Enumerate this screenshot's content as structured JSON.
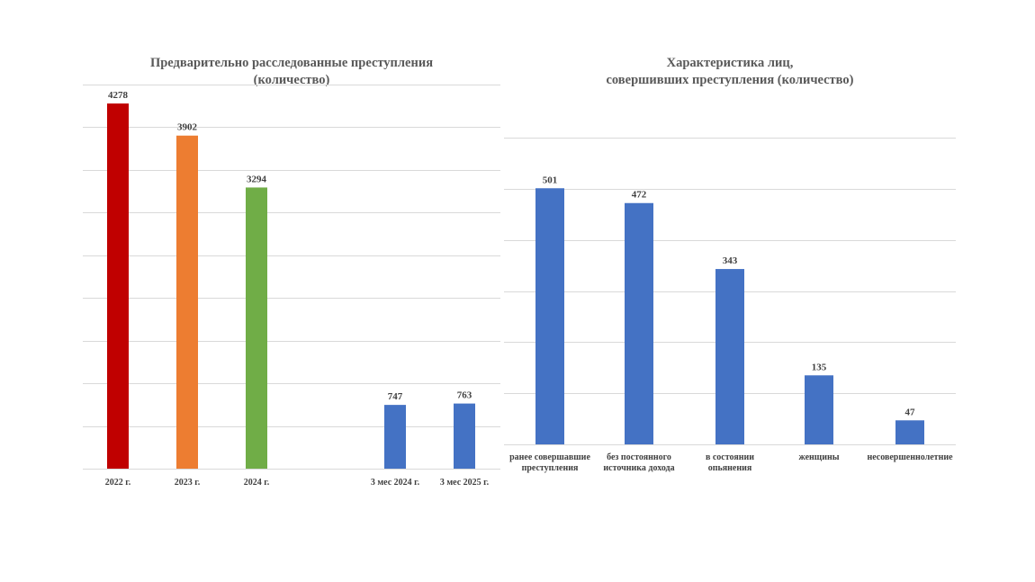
{
  "chart_data": [
    {
      "type": "bar",
      "title_lines": [
        "Предварительно расследованные преступления",
        "(количество)"
      ],
      "categories": [
        "2022 г.",
        "2023 г.",
        "2024 г.",
        "3 мес 2024 г.",
        "3 мес 2025 г."
      ],
      "values": [
        4278,
        3902,
        3294,
        747,
        763
      ],
      "colors": [
        "#c00000",
        "#ed7d31",
        "#70ad47",
        "#4472c4",
        "#4472c4"
      ],
      "ylim": [
        0,
        4500
      ],
      "grid": true,
      "xlabel": "",
      "ylabel": ""
    },
    {
      "type": "bar",
      "title_lines": [
        "Характеристика лиц,",
        "совершивших преступления (количество)"
      ],
      "categories": [
        [
          "ранее совершавшие",
          "преступления"
        ],
        [
          "без постоянного",
          "источника дохода"
        ],
        [
          "в состоянии",
          "опьянения"
        ],
        [
          "женщины"
        ],
        [
          "несовершеннолетние"
        ]
      ],
      "values": [
        501,
        472,
        343,
        135,
        47
      ],
      "colors": [
        "#4472c4",
        "#4472c4",
        "#4472c4",
        "#4472c4",
        "#4472c4"
      ],
      "ylim": [
        0,
        600
      ],
      "grid": true,
      "xlabel": "",
      "ylabel": ""
    }
  ]
}
